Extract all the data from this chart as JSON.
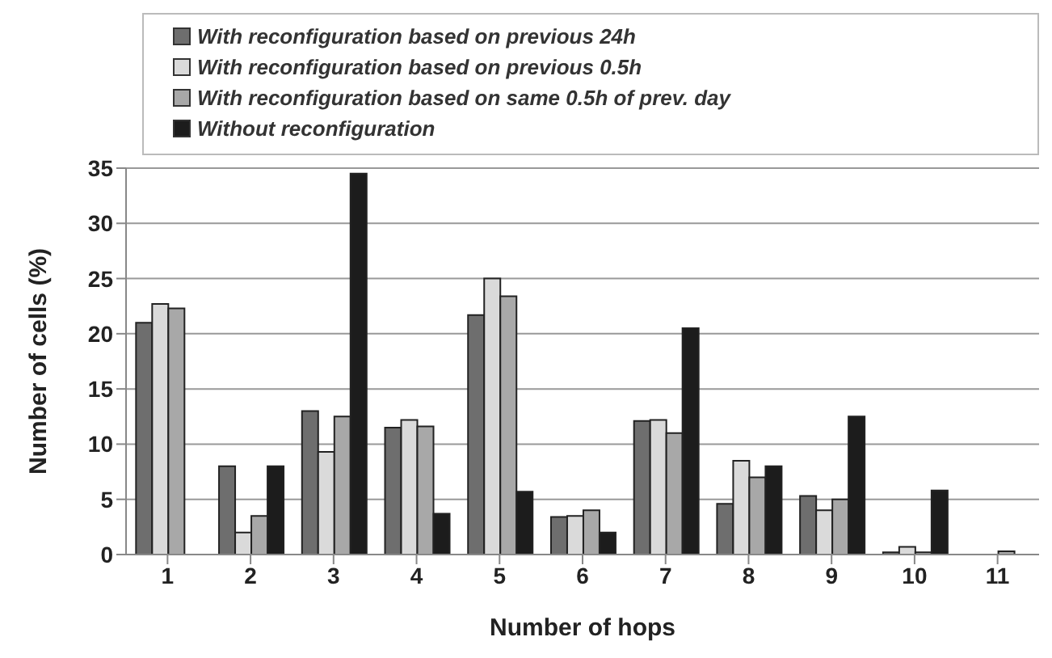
{
  "chart_data": {
    "type": "bar",
    "xlabel": "Number of hops",
    "ylabel": "Number of cells (%)",
    "categories": [
      "1",
      "2",
      "3",
      "4",
      "5",
      "6",
      "7",
      "8",
      "9",
      "10",
      "11"
    ],
    "series": [
      {
        "name": "With reconfiguration based on previous 24h",
        "color": "#6e6e6e",
        "values": [
          21,
          8,
          13,
          11.5,
          21.7,
          3.4,
          12.1,
          4.6,
          5.3,
          0.2,
          0
        ]
      },
      {
        "name": "With reconfiguration based on previous 0.5h",
        "color": "#dadada",
        "values": [
          22.7,
          2,
          9.3,
          12.2,
          25,
          3.5,
          12.2,
          8.5,
          4,
          0.7,
          0
        ]
      },
      {
        "name": "With reconfiguration based on same 0.5h of prev. day",
        "color": "#a8a8a8",
        "values": [
          22.3,
          3.5,
          12.5,
          11.6,
          23.4,
          4,
          11,
          7,
          5,
          0.2,
          0.3
        ]
      },
      {
        "name": "Without reconfiguration",
        "color": "#1c1c1c",
        "values": [
          0,
          8,
          34.5,
          3.7,
          5.7,
          2,
          20.5,
          8,
          12.5,
          5.8,
          0
        ]
      }
    ],
    "ylim": [
      0,
      35
    ],
    "yticks": [
      0,
      5,
      10,
      15,
      20,
      25,
      30,
      35
    ],
    "grid": "y",
    "legend": "top"
  }
}
